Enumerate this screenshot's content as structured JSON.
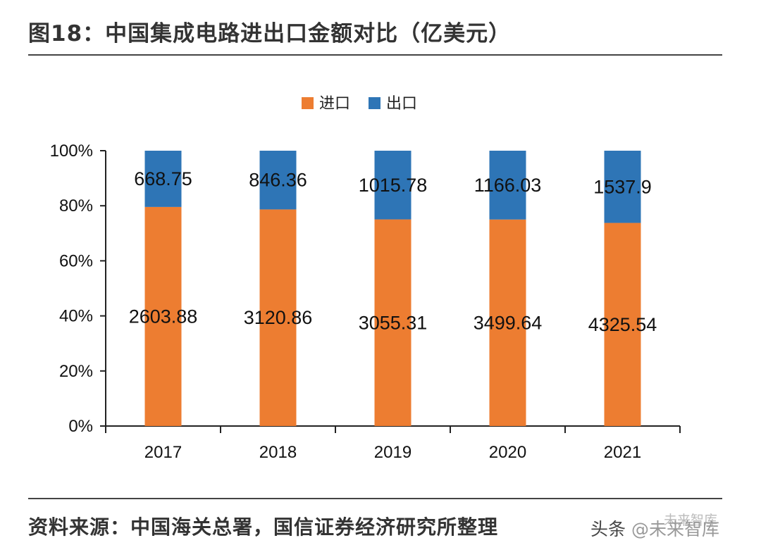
{
  "header": {
    "title": "图18：中国集成电路进出口金额对比（亿美元）"
  },
  "footer": {
    "source": "资料来源：中国海关总署，国信证券经济研究所整理",
    "watermark_platform": "头条",
    "watermark_handle": "@未来智库",
    "watermark_overlay": "未来智库"
  },
  "colors": {
    "import": "#ED7D31",
    "export": "#2E75B6",
    "axis": "#222222"
  },
  "chart_data": {
    "type": "bar",
    "stacked": "percent",
    "title": "图18：中国集成电路进出口金额对比（亿美元）",
    "categories": [
      "2017",
      "2018",
      "2019",
      "2020",
      "2021"
    ],
    "series": [
      {
        "name": "进口",
        "values": [
          2603.88,
          3120.86,
          3055.31,
          3499.64,
          4325.54
        ]
      },
      {
        "name": "出口",
        "values": [
          668.75,
          846.36,
          1015.78,
          1166.03,
          1537.9
        ]
      }
    ],
    "data_labels": {
      "进口": [
        "2603.88",
        "3120.86",
        "3055.31",
        "3499.64",
        "4325.54"
      ],
      "出口": [
        "668.75",
        "846.36",
        "1015.78",
        "1166.03",
        "1537.9"
      ]
    },
    "y_ticks": [
      "0%",
      "20%",
      "40%",
      "60%",
      "80%",
      "100%"
    ],
    "ylim": [
      0,
      100
    ],
    "xlabel": "",
    "ylabel": "",
    "legend": {
      "position": "top-center",
      "entries": [
        "进口",
        "出口"
      ]
    },
    "grid": false
  }
}
